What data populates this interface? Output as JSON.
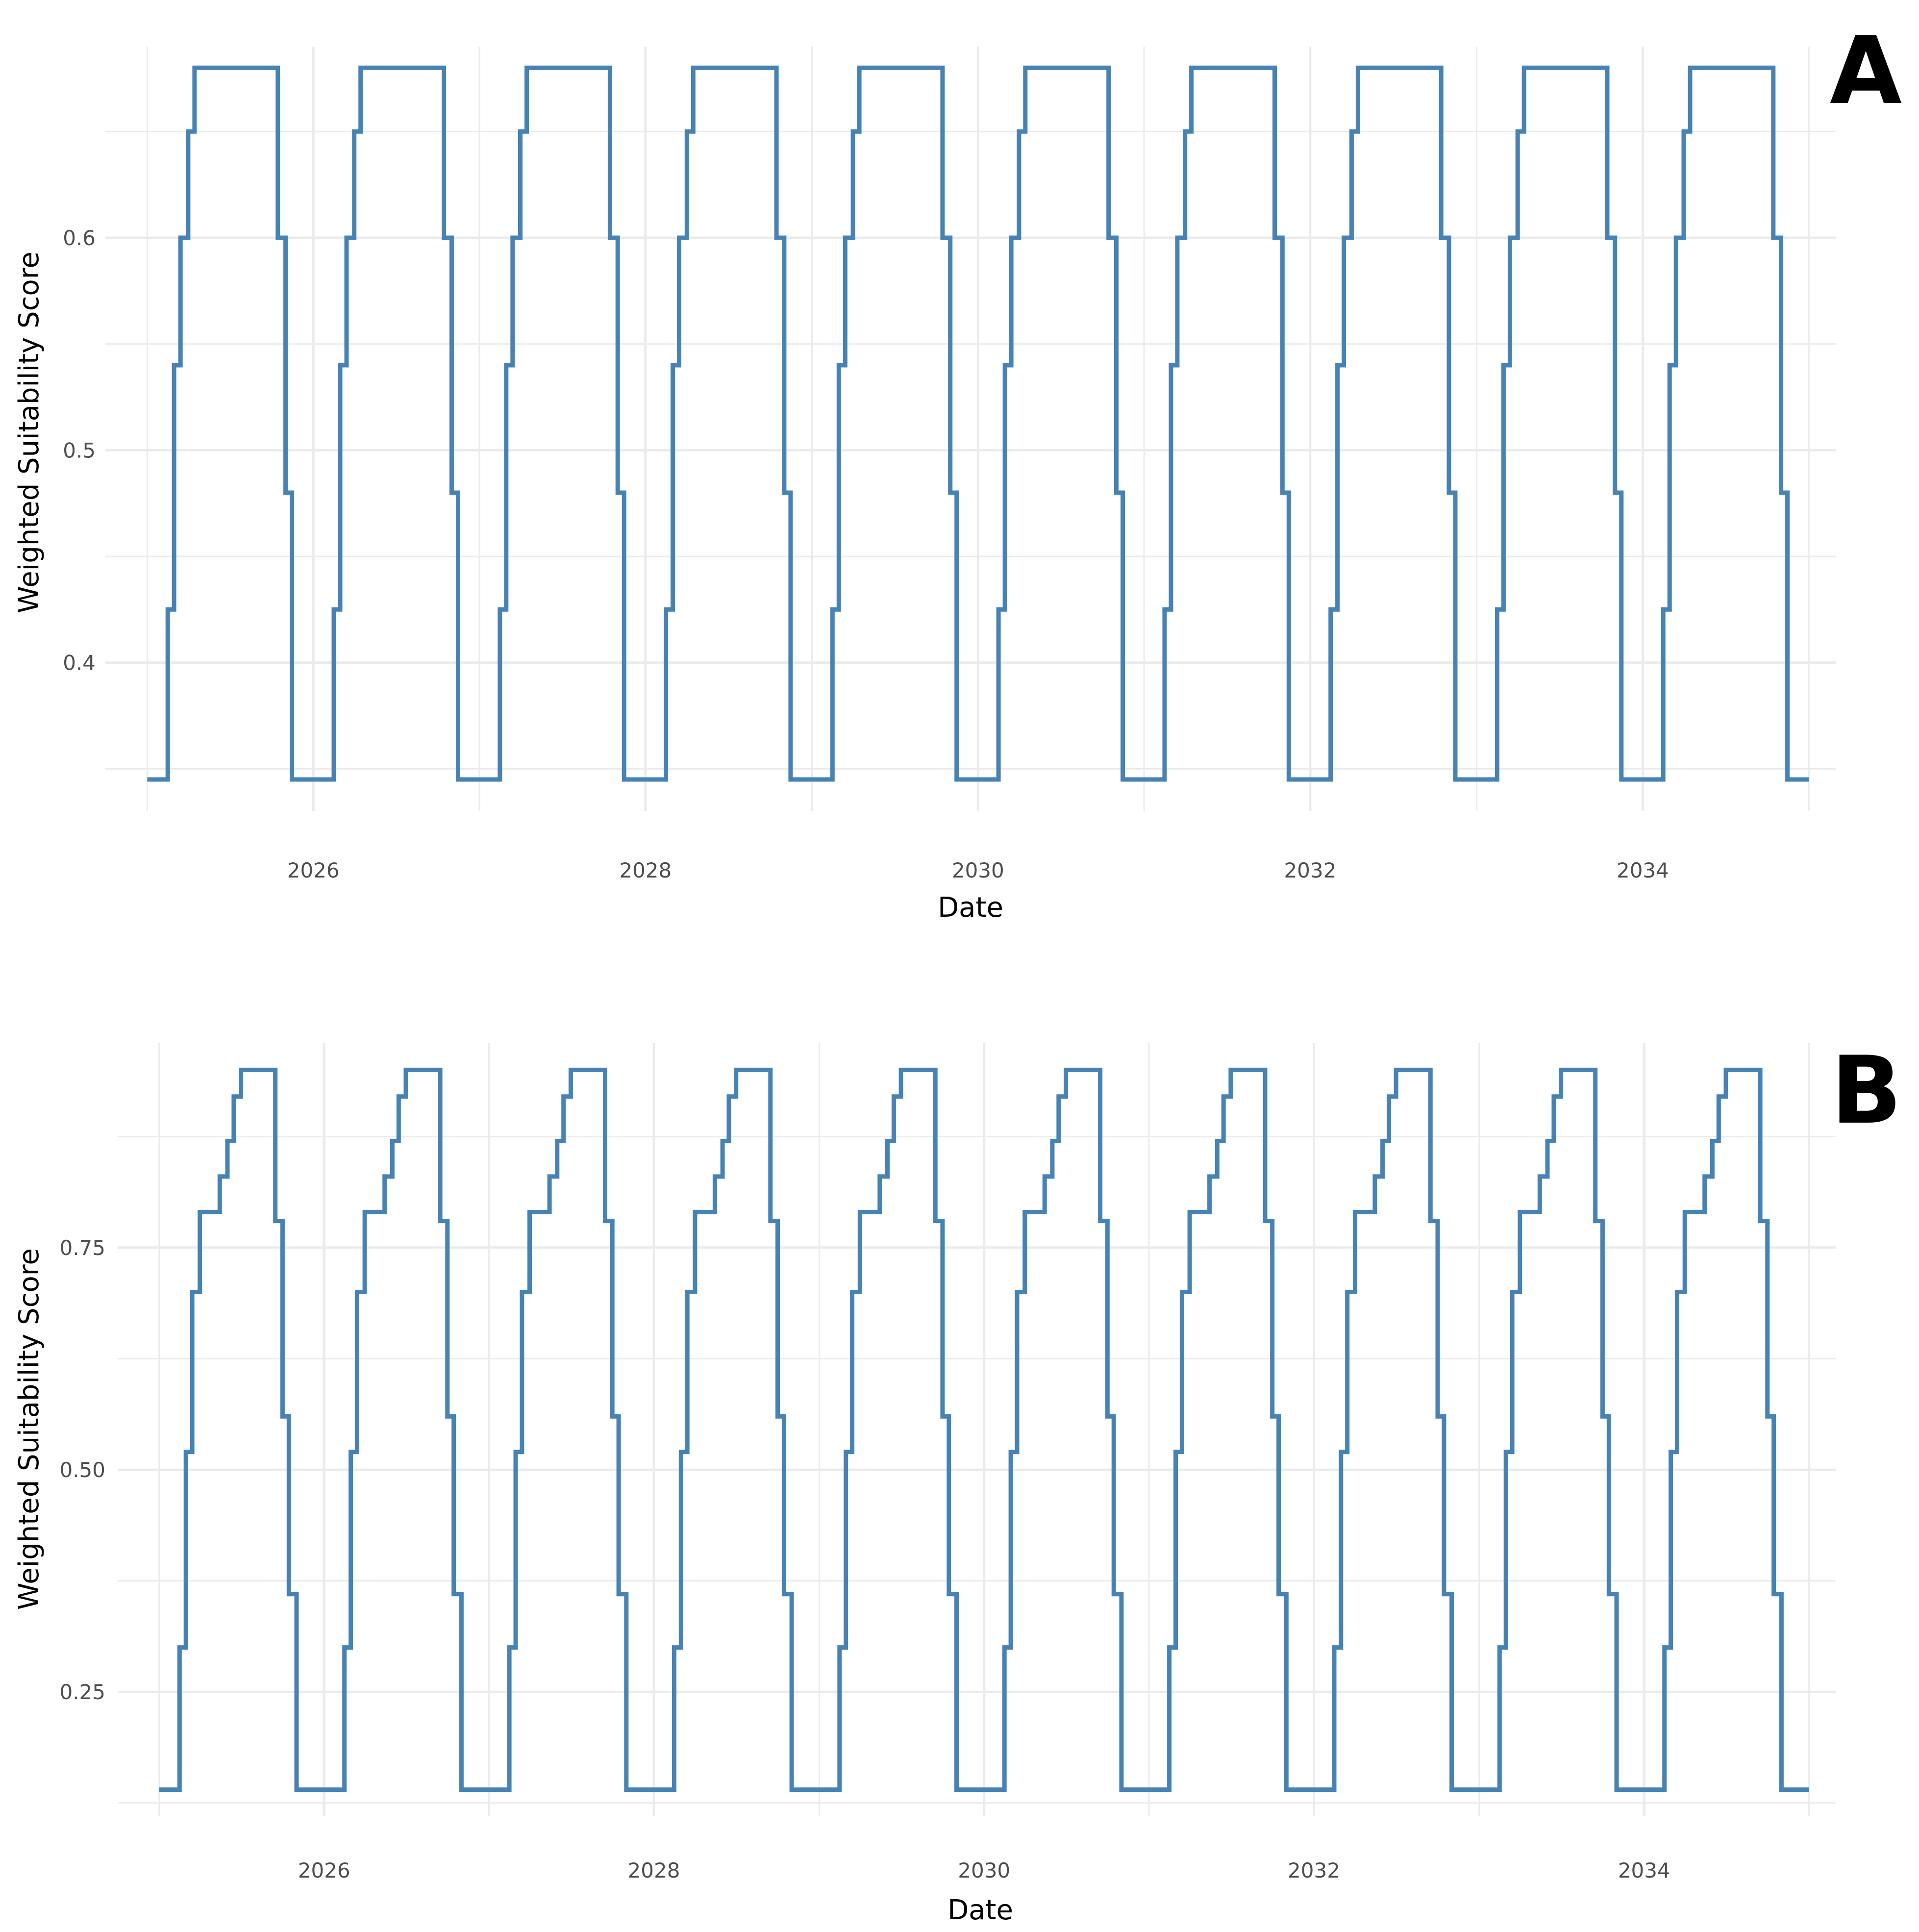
{
  "colors": {
    "line": "#4682b4",
    "grid": "#ebebeb",
    "text": "#4d4d4d"
  },
  "chart_data": [
    {
      "type": "line",
      "panel_label": "A",
      "xlabel": "Date",
      "ylabel": "Weighted Suitability Score",
      "x_tick_labels": [
        "2026",
        "2028",
        "2030",
        "2032",
        "2034"
      ],
      "x_ticks": [
        "2026-01-01",
        "2028-01-01",
        "2030-01-01",
        "2032-01-01",
        "2034-01-01"
      ],
      "y_tick_labels": [
        "0.4",
        "0.5",
        "0.6"
      ],
      "y_ticks": [
        0.4,
        0.5,
        0.6
      ],
      "xlim": [
        "2024-10-01",
        "2035-03-01"
      ],
      "ylim": [
        0.33,
        0.69
      ],
      "grid": true,
      "legend": "none",
      "series": [
        {
          "x": [
            "2025-01-01",
            "2025-02-01",
            "2025-02-15",
            "2025-03-01",
            "2025-03-15",
            "2025-04-01",
            "2025-04-15",
            "2025-10-01",
            "2025-10-15",
            "2025-11-01",
            "2025-11-15",
            "2026-01-01",
            "2026-02-01",
            "2026-02-15",
            "2026-03-01",
            "2026-03-15",
            "2026-04-01",
            "2026-04-15",
            "2026-10-01",
            "2026-10-15",
            "2026-11-01",
            "2026-11-15",
            "2027-01-01",
            "2027-02-01",
            "2027-02-15",
            "2027-03-01",
            "2027-03-15",
            "2027-04-01",
            "2027-04-15",
            "2027-10-01",
            "2027-10-15",
            "2027-11-01",
            "2027-11-15",
            "2028-01-01",
            "2028-02-01",
            "2028-02-15",
            "2028-03-01",
            "2028-03-15",
            "2028-04-01",
            "2028-04-15",
            "2028-10-01",
            "2028-10-15",
            "2028-11-01",
            "2028-11-15",
            "2029-01-01",
            "2029-02-01",
            "2029-02-15",
            "2029-03-01",
            "2029-03-15",
            "2029-04-01",
            "2029-04-15",
            "2029-10-01",
            "2029-10-15",
            "2029-11-01",
            "2029-11-15",
            "2030-01-01",
            "2030-02-01",
            "2030-02-15",
            "2030-03-01",
            "2030-03-15",
            "2030-04-01",
            "2030-04-15",
            "2030-10-01",
            "2030-10-15",
            "2030-11-01",
            "2030-11-15",
            "2031-01-01",
            "2031-02-01",
            "2031-02-15",
            "2031-03-01",
            "2031-03-15",
            "2031-04-01",
            "2031-04-15",
            "2031-10-01",
            "2031-10-15",
            "2031-11-01",
            "2031-11-15",
            "2032-01-01",
            "2032-02-01",
            "2032-02-15",
            "2032-03-01",
            "2032-03-15",
            "2032-04-01",
            "2032-04-15",
            "2032-10-01",
            "2032-10-15",
            "2032-11-01",
            "2032-11-15",
            "2033-01-01",
            "2033-02-01",
            "2033-02-15",
            "2033-03-01",
            "2033-03-15",
            "2033-04-01",
            "2033-04-15",
            "2033-10-01",
            "2033-10-15",
            "2033-11-01",
            "2033-11-15",
            "2034-01-01",
            "2034-02-01",
            "2034-02-15",
            "2034-03-01",
            "2034-03-15",
            "2034-04-01",
            "2034-04-15",
            "2034-10-01",
            "2034-10-15",
            "2034-11-01",
            "2034-11-15",
            "2035-01-01"
          ],
          "y": [
            0.345,
            0.345,
            0.425,
            0.54,
            0.6,
            0.65,
            0.68,
            0.68,
            0.6,
            0.48,
            0.345,
            0.345,
            0.345,
            0.425,
            0.54,
            0.6,
            0.65,
            0.68,
            0.68,
            0.6,
            0.48,
            0.345,
            0.345,
            0.345,
            0.425,
            0.54,
            0.6,
            0.65,
            0.68,
            0.68,
            0.6,
            0.48,
            0.345,
            0.345,
            0.345,
            0.425,
            0.54,
            0.6,
            0.65,
            0.68,
            0.68,
            0.6,
            0.48,
            0.345,
            0.345,
            0.345,
            0.425,
            0.54,
            0.6,
            0.65,
            0.68,
            0.68,
            0.6,
            0.48,
            0.345,
            0.345,
            0.345,
            0.425,
            0.54,
            0.6,
            0.65,
            0.68,
            0.68,
            0.6,
            0.48,
            0.345,
            0.345,
            0.345,
            0.425,
            0.54,
            0.6,
            0.65,
            0.68,
            0.68,
            0.6,
            0.48,
            0.345,
            0.345,
            0.345,
            0.425,
            0.54,
            0.6,
            0.65,
            0.68,
            0.68,
            0.6,
            0.48,
            0.345,
            0.345,
            0.345,
            0.425,
            0.54,
            0.6,
            0.65,
            0.68,
            0.68,
            0.6,
            0.48,
            0.345,
            0.345,
            0.345,
            0.425,
            0.54,
            0.6,
            0.65,
            0.68,
            0.68,
            0.6,
            0.48,
            0.345,
            0.345
          ]
        }
      ]
    },
    {
      "type": "line",
      "panel_label": "B",
      "xlabel": "Date",
      "ylabel": "Weighted Suitability Score",
      "x_tick_labels": [
        "2026",
        "2028",
        "2030",
        "2032",
        "2034"
      ],
      "x_ticks": [
        "2026-01-01",
        "2028-01-01",
        "2030-01-01",
        "2032-01-01",
        "2034-01-01"
      ],
      "y_tick_labels": [
        "0.25",
        "0.50",
        "0.75"
      ],
      "y_ticks": [
        0.25,
        0.5,
        0.75
      ],
      "xlim": [
        "2024-10-01",
        "2035-03-01"
      ],
      "ylim": [
        0.11,
        0.98
      ],
      "grid": true,
      "legend": "none",
      "series": [
        {
          "x": [
            "2025-01-01",
            "2025-02-01",
            "2025-02-15",
            "2025-03-01",
            "2025-03-15",
            "2025-04-01",
            "2025-05-01",
            "2025-05-15",
            "2025-06-01",
            "2025-06-15",
            "2025-07-01",
            "2025-09-01",
            "2025-09-15",
            "2025-10-01",
            "2025-10-15",
            "2025-11-01",
            "2026-01-01",
            "2026-02-01",
            "2026-02-15",
            "2026-03-01",
            "2026-03-15",
            "2026-04-01",
            "2026-05-01",
            "2026-05-15",
            "2026-06-01",
            "2026-06-15",
            "2026-07-01",
            "2026-09-01",
            "2026-09-15",
            "2026-10-01",
            "2026-10-15",
            "2026-11-01",
            "2027-01-01",
            "2027-02-01",
            "2027-02-15",
            "2027-03-01",
            "2027-03-15",
            "2027-04-01",
            "2027-05-01",
            "2027-05-15",
            "2027-06-01",
            "2027-06-15",
            "2027-07-01",
            "2027-09-01",
            "2027-09-15",
            "2027-10-01",
            "2027-10-15",
            "2027-11-01",
            "2028-01-01",
            "2028-02-01",
            "2028-02-15",
            "2028-03-01",
            "2028-03-15",
            "2028-04-01",
            "2028-05-01",
            "2028-05-15",
            "2028-06-01",
            "2028-06-15",
            "2028-07-01",
            "2028-09-01",
            "2028-09-15",
            "2028-10-01",
            "2028-10-15",
            "2028-11-01",
            "2029-01-01",
            "2029-02-01",
            "2029-02-15",
            "2029-03-01",
            "2029-03-15",
            "2029-04-01",
            "2029-05-01",
            "2029-05-15",
            "2029-06-01",
            "2029-06-15",
            "2029-07-01",
            "2029-09-01",
            "2029-09-15",
            "2029-10-01",
            "2029-10-15",
            "2029-11-01",
            "2030-01-01",
            "2030-02-01",
            "2030-02-15",
            "2030-03-01",
            "2030-03-15",
            "2030-04-01",
            "2030-05-01",
            "2030-05-15",
            "2030-06-01",
            "2030-06-15",
            "2030-07-01",
            "2030-09-01",
            "2030-09-15",
            "2030-10-01",
            "2030-10-15",
            "2030-11-01",
            "2031-01-01",
            "2031-02-01",
            "2031-02-15",
            "2031-03-01",
            "2031-03-15",
            "2031-04-01",
            "2031-05-01",
            "2031-05-15",
            "2031-06-01",
            "2031-06-15",
            "2031-07-01",
            "2031-09-01",
            "2031-09-15",
            "2031-10-01",
            "2031-10-15",
            "2031-11-01",
            "2032-01-01",
            "2032-02-01",
            "2032-02-15",
            "2032-03-01",
            "2032-03-15",
            "2032-04-01",
            "2032-05-01",
            "2032-05-15",
            "2032-06-01",
            "2032-06-15",
            "2032-07-01",
            "2032-09-01",
            "2032-09-15",
            "2032-10-01",
            "2032-10-15",
            "2032-11-01",
            "2033-01-01",
            "2033-02-01",
            "2033-02-15",
            "2033-03-01",
            "2033-03-15",
            "2033-04-01",
            "2033-05-01",
            "2033-05-15",
            "2033-06-01",
            "2033-06-15",
            "2033-07-01",
            "2033-09-01",
            "2033-09-15",
            "2033-10-01",
            "2033-10-15",
            "2033-11-01",
            "2034-01-01",
            "2034-02-01",
            "2034-02-15",
            "2034-03-01",
            "2034-03-15",
            "2034-04-01",
            "2034-05-01",
            "2034-05-15",
            "2034-06-01",
            "2034-06-15",
            "2034-07-01",
            "2034-09-01",
            "2034-09-15",
            "2034-10-01",
            "2034-10-15",
            "2034-11-01",
            "2035-01-01"
          ],
          "y": [
            0.14,
            0.14,
            0.3,
            0.52,
            0.7,
            0.79,
            0.79,
            0.83,
            0.87,
            0.92,
            0.95,
            0.95,
            0.78,
            0.56,
            0.36,
            0.14,
            0.14,
            0.14,
            0.3,
            0.52,
            0.7,
            0.79,
            0.79,
            0.83,
            0.87,
            0.92,
            0.95,
            0.95,
            0.78,
            0.56,
            0.36,
            0.14,
            0.14,
            0.14,
            0.3,
            0.52,
            0.7,
            0.79,
            0.79,
            0.83,
            0.87,
            0.92,
            0.95,
            0.95,
            0.78,
            0.56,
            0.36,
            0.14,
            0.14,
            0.14,
            0.3,
            0.52,
            0.7,
            0.79,
            0.79,
            0.83,
            0.87,
            0.92,
            0.95,
            0.95,
            0.78,
            0.56,
            0.36,
            0.14,
            0.14,
            0.14,
            0.3,
            0.52,
            0.7,
            0.79,
            0.79,
            0.83,
            0.87,
            0.92,
            0.95,
            0.95,
            0.78,
            0.56,
            0.36,
            0.14,
            0.14,
            0.14,
            0.3,
            0.52,
            0.7,
            0.79,
            0.79,
            0.83,
            0.87,
            0.92,
            0.95,
            0.95,
            0.78,
            0.56,
            0.36,
            0.14,
            0.14,
            0.14,
            0.3,
            0.52,
            0.7,
            0.79,
            0.79,
            0.83,
            0.87,
            0.92,
            0.95,
            0.95,
            0.78,
            0.56,
            0.36,
            0.14,
            0.14,
            0.14,
            0.3,
            0.52,
            0.7,
            0.79,
            0.79,
            0.83,
            0.87,
            0.92,
            0.95,
            0.95,
            0.78,
            0.56,
            0.36,
            0.14,
            0.14,
            0.14,
            0.3,
            0.52,
            0.7,
            0.79,
            0.79,
            0.83,
            0.87,
            0.92,
            0.95,
            0.95,
            0.78,
            0.56,
            0.36,
            0.14,
            0.14,
            0.14,
            0.3,
            0.52,
            0.7,
            0.79,
            0.79,
            0.83,
            0.87,
            0.92,
            0.95,
            0.95,
            0.78,
            0.56,
            0.36,
            0.14,
            0.14
          ]
        }
      ]
    }
  ]
}
